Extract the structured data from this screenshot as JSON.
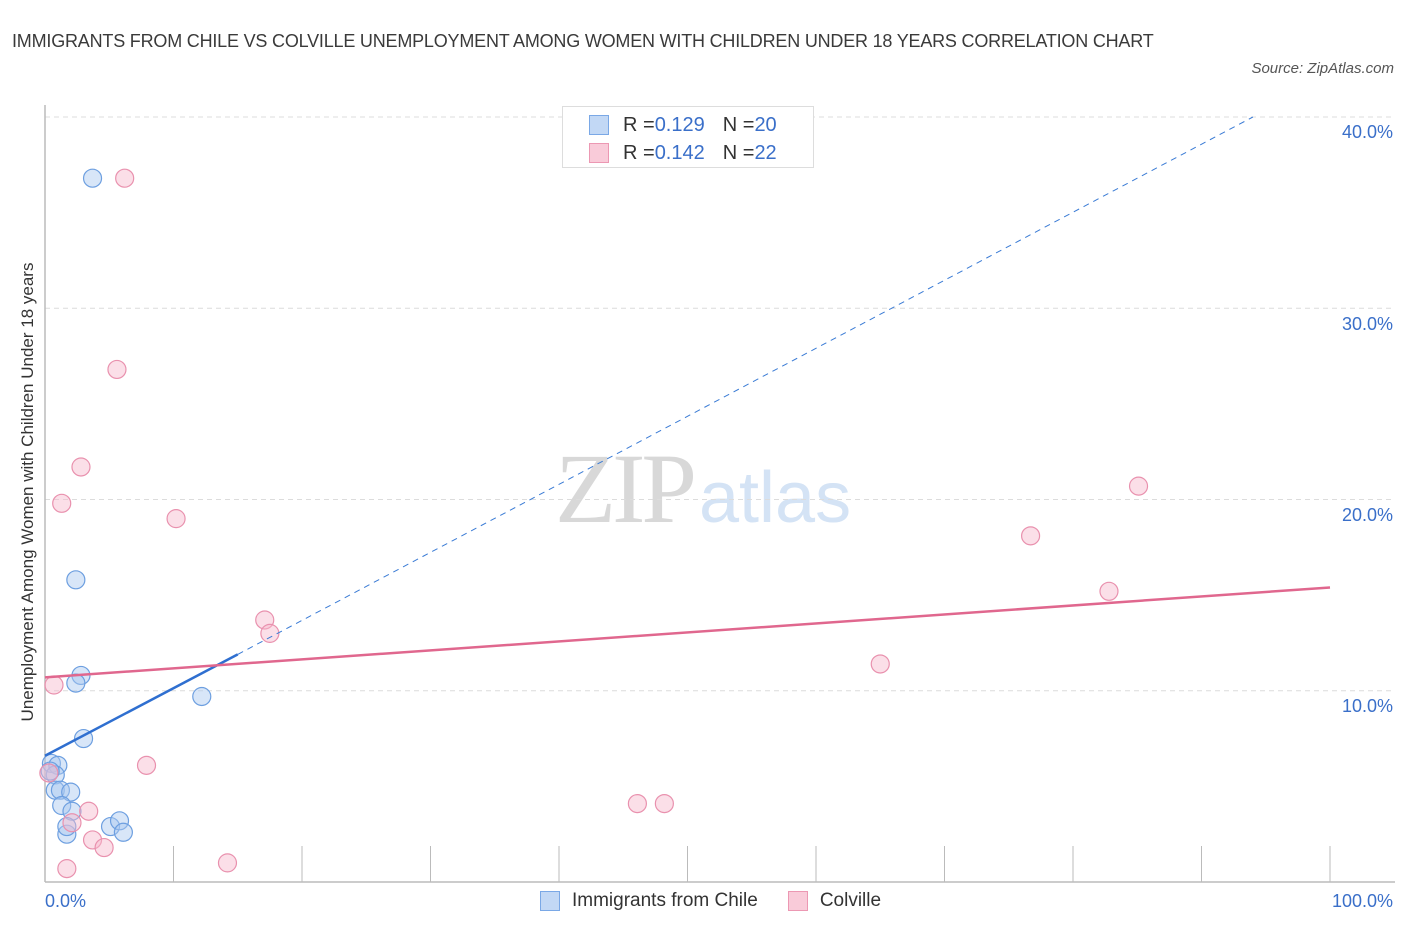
{
  "header": {
    "title": "IMMIGRANTS FROM CHILE VS COLVILLE UNEMPLOYMENT AMONG WOMEN WITH CHILDREN UNDER 18 YEARS CORRELATION CHART",
    "source": "Source: ZipAtlas.com"
  },
  "legend_box": {
    "rows": [
      {
        "r_label": "R = ",
        "r_value": "0.129",
        "n_label": "N = ",
        "n_value": "20",
        "color": "#a8c8f0"
      },
      {
        "r_label": "R = ",
        "r_value": "0.142",
        "n_label": "N = ",
        "n_value": "22",
        "color": "#f7b8cb"
      }
    ]
  },
  "bottom_legend": [
    {
      "label": "Immigrants from Chile",
      "color": "#a8c8f0"
    },
    {
      "label": "Colville",
      "color": "#f7b8cb"
    }
  ],
  "axes": {
    "ylabel": "Unemployment Among Women with Children Under 18 years",
    "x_min_label": "0.0%",
    "x_max_label": "100.0%",
    "y_ticks": [
      "10.0%",
      "20.0%",
      "30.0%",
      "40.0%"
    ]
  },
  "watermark": {
    "zip": "ZIP",
    "atlas": "atlas"
  },
  "colors": {
    "blue": "#3a7bd5",
    "blue_fill": "#a8c8f0",
    "pink": "#e0678e",
    "pink_fill": "#f7b8cb",
    "tick_label": "#3a6fc9"
  },
  "chart_data": {
    "type": "scatter",
    "title": "IMMIGRANTS FROM CHILE VS COLVILLE UNEMPLOYMENT AMONG WOMEN WITH CHILDREN UNDER 18 YEARS CORRELATION CHART",
    "xlabel": "",
    "ylabel": "Unemployment Among Women with Children Under 18 years",
    "xlim": [
      0,
      100
    ],
    "ylim": [
      0,
      40
    ],
    "x_unit": "%",
    "y_unit": "%",
    "y_ticks": [
      10,
      20,
      30,
      40
    ],
    "x_tick_labels": [
      "0.0%",
      "100.0%"
    ],
    "grid": {
      "horizontal": true,
      "style": "dashed"
    },
    "legend_position": "top-center and bottom",
    "series": [
      {
        "name": "Immigrants from Chile",
        "color": "#a8c8f0",
        "R": 0.129,
        "N": 20,
        "points": [
          [
            3.7,
            36.8
          ],
          [
            2.4,
            15.8
          ],
          [
            2.8,
            10.8
          ],
          [
            2.4,
            10.4
          ],
          [
            12.2,
            9.7
          ],
          [
            3.0,
            7.5
          ],
          [
            0.5,
            6.2
          ],
          [
            1.0,
            6.1
          ],
          [
            0.8,
            5.6
          ],
          [
            0.4,
            5.8
          ],
          [
            0.8,
            4.8
          ],
          [
            1.2,
            4.8
          ],
          [
            2.0,
            4.7
          ],
          [
            1.3,
            4.0
          ],
          [
            2.1,
            3.7
          ],
          [
            1.7,
            2.5
          ],
          [
            5.1,
            2.9
          ],
          [
            5.8,
            3.2
          ],
          [
            6.1,
            2.6
          ],
          [
            1.7,
            2.9
          ]
        ],
        "trendline": {
          "x": [
            0,
            15
          ],
          "y": [
            6.6,
            11.9
          ],
          "extended_dashed_to": [
            94,
            40
          ]
        }
      },
      {
        "name": "Colville",
        "color": "#f7b8cb",
        "R": 0.142,
        "N": 22,
        "points": [
          [
            6.2,
            36.8
          ],
          [
            5.6,
            26.8
          ],
          [
            2.8,
            21.7
          ],
          [
            1.3,
            19.8
          ],
          [
            10.2,
            19.0
          ],
          [
            17.1,
            13.7
          ],
          [
            17.5,
            13.0
          ],
          [
            0.7,
            10.3
          ],
          [
            7.9,
            6.1
          ],
          [
            0.3,
            5.7
          ],
          [
            3.4,
            3.7
          ],
          [
            2.1,
            3.1
          ],
          [
            3.7,
            2.2
          ],
          [
            4.6,
            1.8
          ],
          [
            1.7,
            0.7
          ],
          [
            14.2,
            1.0
          ],
          [
            46.1,
            4.1
          ],
          [
            48.2,
            4.1
          ],
          [
            65.0,
            11.4
          ],
          [
            76.7,
            18.1
          ],
          [
            82.8,
            15.2
          ],
          [
            85.1,
            20.7
          ]
        ],
        "trendline": {
          "x": [
            0,
            100
          ],
          "y": [
            10.7,
            15.4
          ]
        }
      }
    ]
  }
}
